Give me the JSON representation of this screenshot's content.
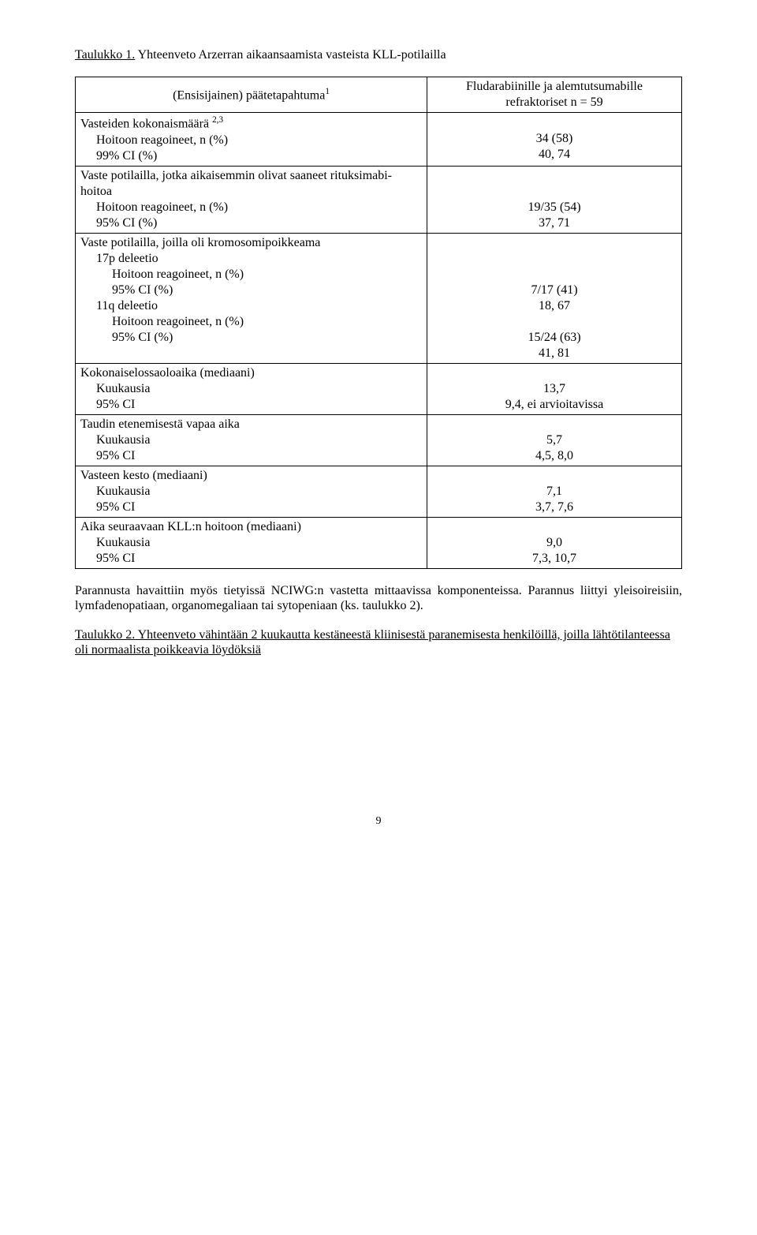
{
  "title_underlined": "Taulukko 1.",
  "title_rest": " Yhteenveto Arzerran aikaansaamista vasteista KLL-potilailla",
  "table": {
    "header": {
      "left_line1": "(Ensisijainen) päätetapahtuma",
      "left_sup": "1",
      "right_line1": "Fludarabiinille ja alemtutsumabille",
      "right_line2": "refraktoriset n = 59"
    },
    "rows": [
      {
        "l1": "Vasteiden kokonaismäärä ",
        "l1sup": "2,3",
        "l2": "Hoitoon reagoineet, n (%)",
        "l3": "99% CI (%)",
        "r1": "34 (58)",
        "r2": "40, 74"
      },
      {
        "l1": "Vaste potilailla, jotka aikaisemmin olivat saaneet rituksimabi-hoitoa",
        "l2": "Hoitoon reagoineet, n (%)",
        "l3": "95% CI (%)",
        "r1": "19/35 (54)",
        "r2": "37, 71"
      },
      {
        "l1": "Vaste potilailla, joilla oli kromosomipoikkeama",
        "sub1": "17p deleetio",
        "sub1a": "Hoitoon reagoineet, n (%)",
        "sub1b": "95% CI (%)",
        "sub2": "11q deleetio",
        "sub2a": "Hoitoon reagoineet, n (%)",
        "sub2b": "95% CI (%)",
        "r1": "7/17 (41)",
        "r2": "18, 67",
        "r3": "15/24 (63)",
        "r4": "41, 81"
      },
      {
        "l1": "Kokonaiselossaoloaika (mediaani)",
        "l2": "Kuukausia",
        "l3": "95% CI",
        "r1": "13,7",
        "r2": "9,4, ei arvioitavissa"
      },
      {
        "l1": "Taudin etenemisestä vapaa aika",
        "l2": "Kuukausia",
        "l3": "95% CI",
        "r1": "5,7",
        "r2": "4,5, 8,0"
      },
      {
        "l1": "Vasteen kesto (mediaani)",
        "l2": "Kuukausia",
        "l3": "95% CI",
        "r1": "7,1",
        "r2": "3,7, 7,6"
      },
      {
        "l1": "Aika seuraavaan KLL:n hoitoon (mediaani)",
        "l2": "Kuukausia",
        "l3": "95% CI",
        "r1": "9,0",
        "r2": "7,3, 10,7"
      }
    ]
  },
  "paragraph": "Parannusta havaittiin myös tietyissä NCIWG:n vastetta mittaavissa komponenteissa. Parannus liittyi yleisoireisiin, lymfadenopatiaan, organomegaliaan tai sytopeniaan (ks. taulukko 2).",
  "subtitle_underlined": "Taulukko 2.",
  "subtitle_rest_underlined": " Yhteenveto vähintään 2 kuukautta kestäneestä kliinisestä paranemisesta henkilöillä, joilla lähtötilanteessa oli normaalista poikkeavia löydöksiä",
  "page_number": "9"
}
